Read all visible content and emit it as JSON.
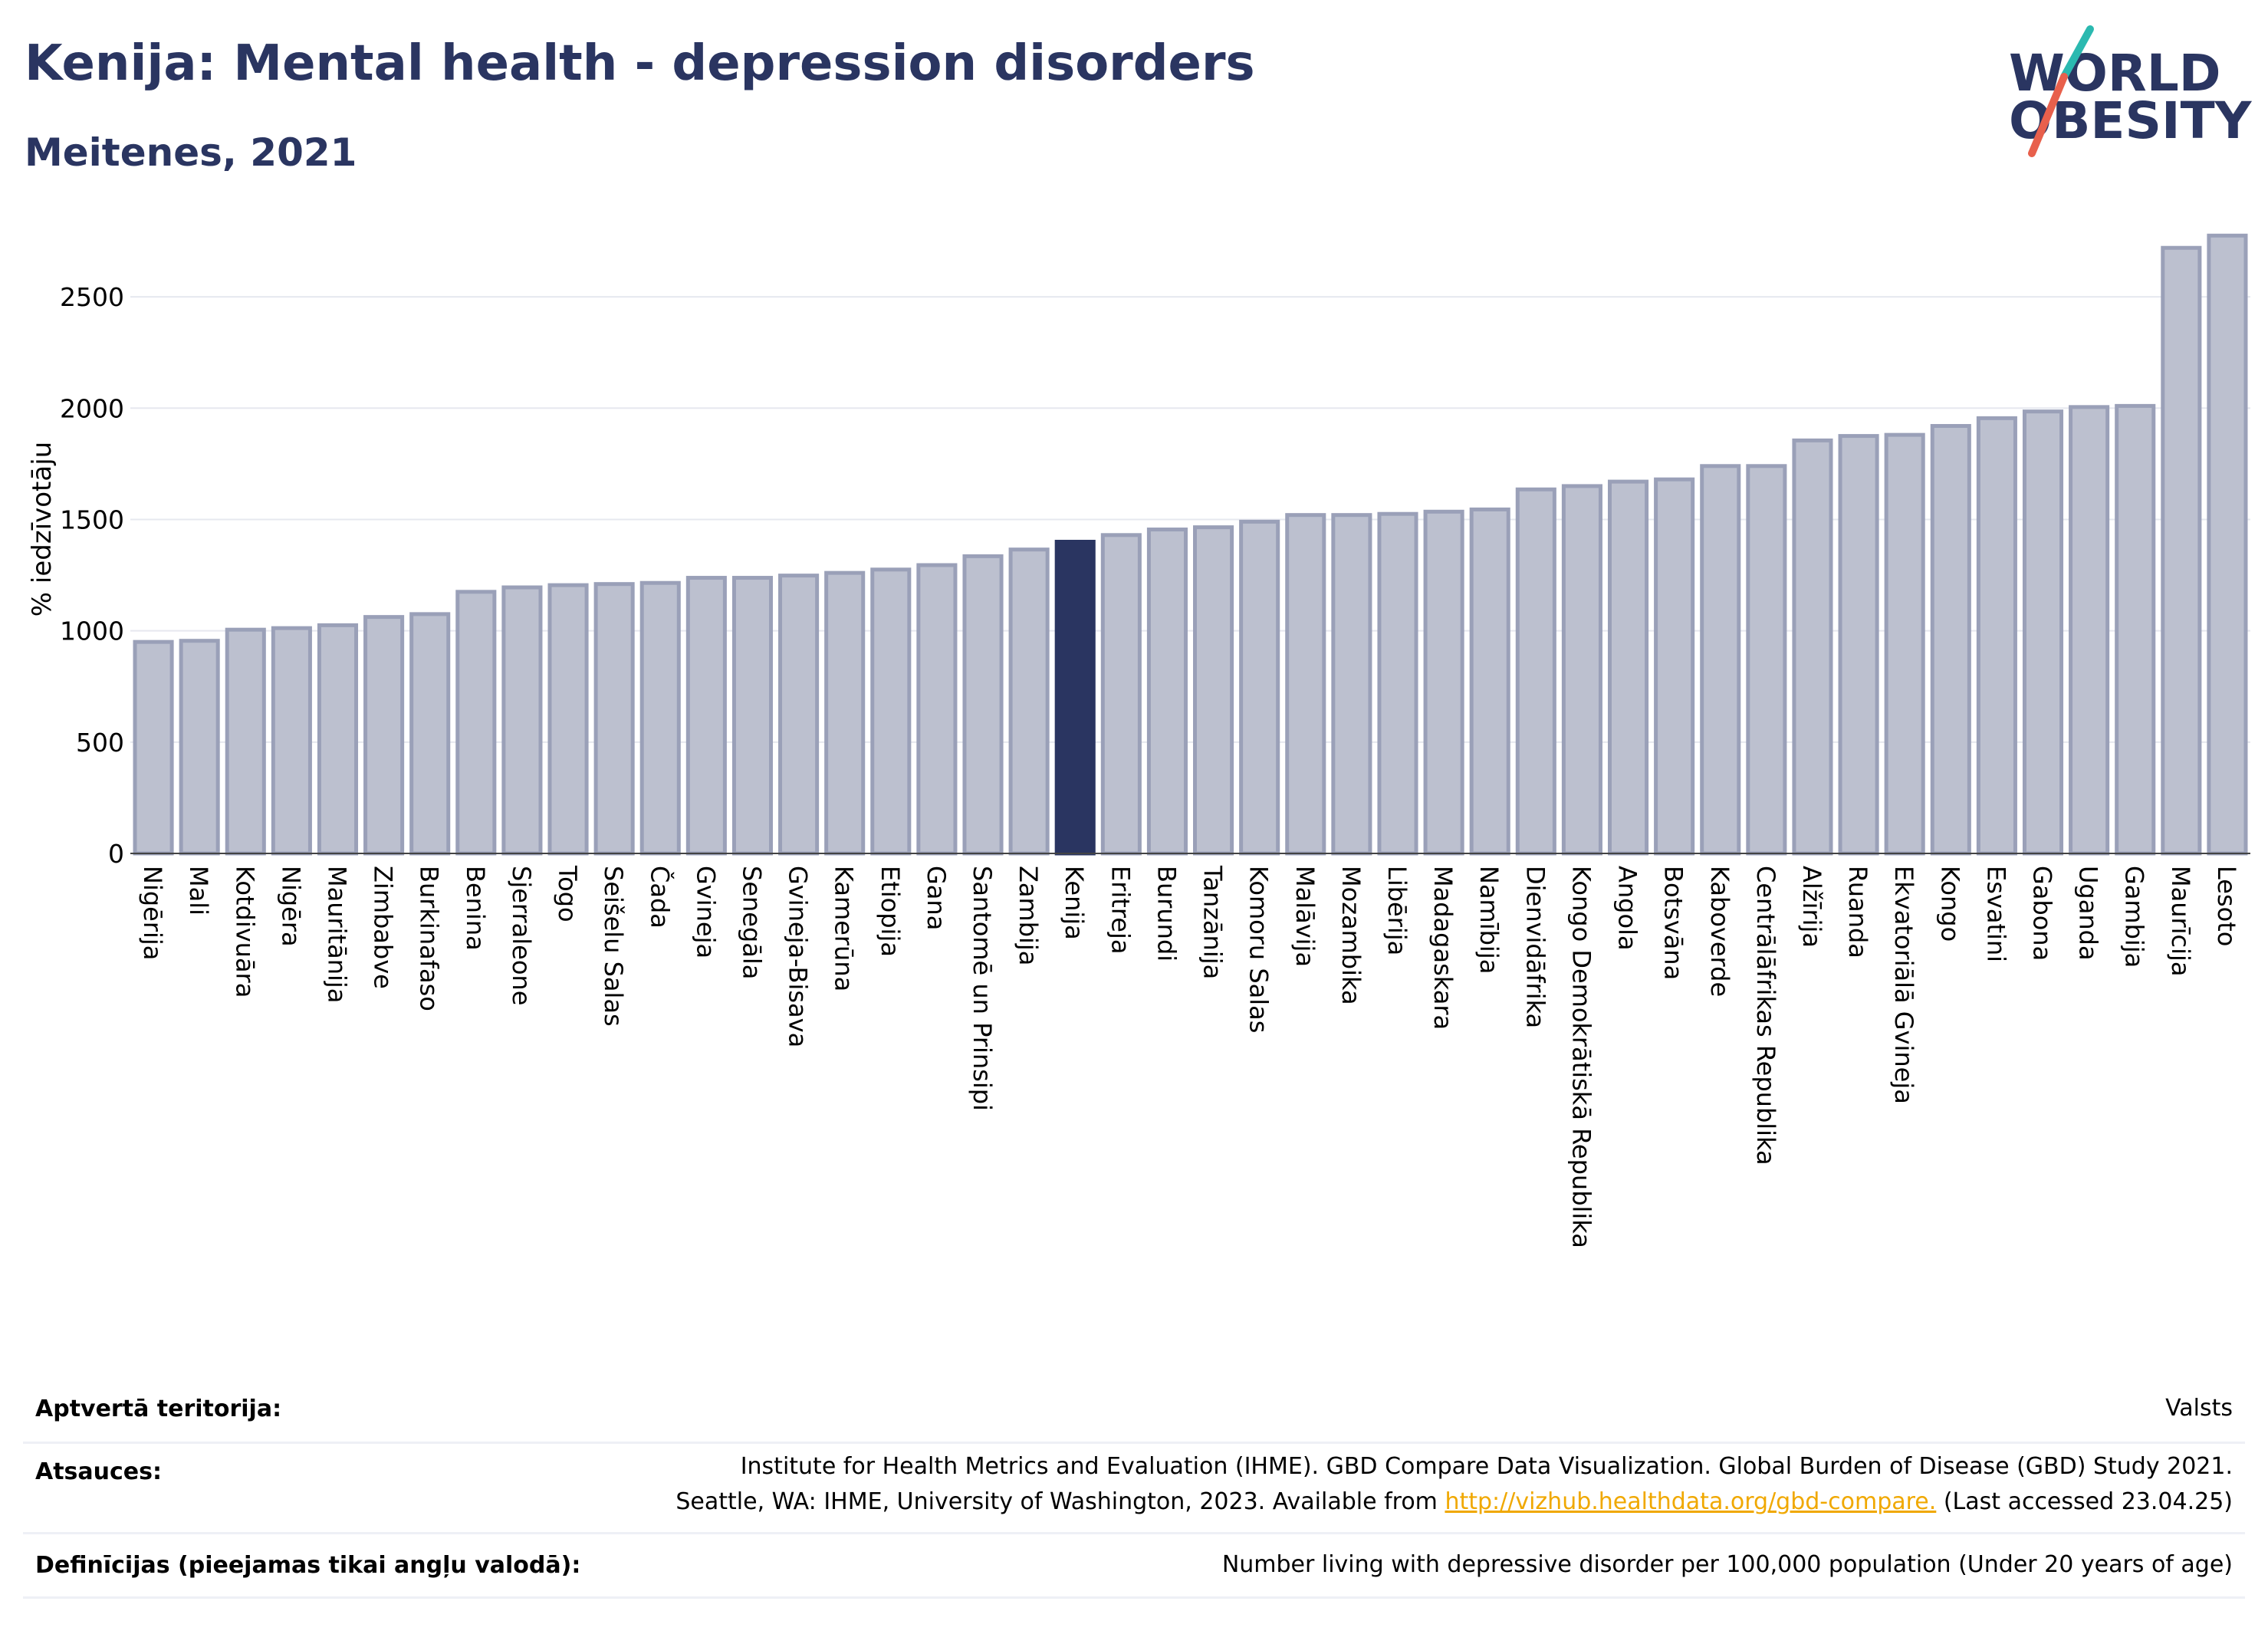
{
  "header": {
    "title": "Kenija: Mental health - depression disorders",
    "subtitle": "Meitenes, 2021"
  },
  "logo": {
    "line1": "WORLD",
    "line2": "OBESITY",
    "colors": {
      "text": "#2a3561",
      "slash_top": "#2bb9b0",
      "slash_bottom": "#e8604c"
    }
  },
  "colors": {
    "bar_fill": "#bcc0cf",
    "bar_stroke": "#9aa0b8",
    "highlight": "#2a3561",
    "grid": "#e6e8ef"
  },
  "chart_data": {
    "type": "bar",
    "ylabel": "% iedzīvotāju",
    "ylim": [
      0,
      2800
    ],
    "yticks": [
      0,
      500,
      1000,
      1500,
      2000,
      2500
    ],
    "highlight": "Kenija",
    "categories": [
      "Nigērija",
      "Mali",
      "Kotdivuāra",
      "Nigēra",
      "Mauritānija",
      "Zimbabve",
      "Burkinafaso",
      "Benina",
      "Sjerraleone",
      "Togo",
      "Seišelu Salas",
      "Čada",
      "Gvineja",
      "Senegāla",
      "Gvineja-Bisava",
      "Kamerūna",
      "Etiopija",
      "Gana",
      "Santomē un Prinsipi",
      "Zambija",
      "Kenija",
      "Eritreja",
      "Burundi",
      "Tanzānija",
      "Komoru Salas",
      "Malāvija",
      "Mozambika",
      "Libērija",
      "Madagaskara",
      "Namībija",
      "Dienvidāfrika",
      "Kongo Demokrātiskā Republika",
      "Angola",
      "Botsvāna",
      "Kaboverde",
      "Centrālāfrikas Republika",
      "Alžīrija",
      "Ruanda",
      "Ekvatoriālā Gvineja",
      "Kongo",
      "Esvatini",
      "Gabona",
      "Uganda",
      "Gambija",
      "Maurīcija",
      "Lesoto"
    ],
    "values": [
      950,
      955,
      1005,
      1012,
      1025,
      1062,
      1075,
      1175,
      1195,
      1205,
      1210,
      1215,
      1238,
      1238,
      1248,
      1260,
      1275,
      1295,
      1335,
      1365,
      1400,
      1430,
      1455,
      1465,
      1490,
      1520,
      1520,
      1525,
      1535,
      1545,
      1635,
      1650,
      1670,
      1680,
      1740,
      1740,
      1855,
      1875,
      1880,
      1920,
      1955,
      1985,
      2005,
      2010,
      2720,
      2775
    ]
  },
  "meta": {
    "rows": [
      {
        "key": "Aptvertā teritorija:",
        "lines": [
          "Valsts"
        ]
      },
      {
        "key": "Atsauces:",
        "lines": [
          "Institute for Health Metrics and Evaluation (IHME). GBD Compare Data Visualization. Global Burden of Disease (GBD) Study 2021."
        ],
        "line2_pre": "Seattle, WA: IHME, University of Washington, 2023. Available from ",
        "line2_link": "http://vizhub.healthdata.org/gbd-compare.",
        "line2_post": " (Last accessed 23.04.25)"
      },
      {
        "key": "Definīcijas (pieejamas tikai angļu valodā):",
        "lines": [
          "Number living with depressive disorder per 100,000 population (Under 20 years of age)"
        ]
      }
    ]
  }
}
